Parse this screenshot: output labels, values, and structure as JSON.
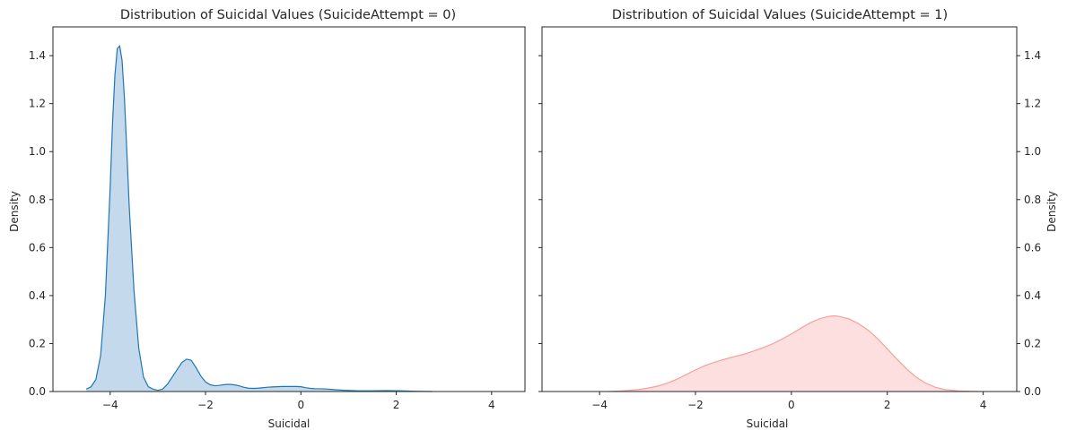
{
  "chart_data": [
    {
      "type": "area",
      "title": "Distribution of Suicidal Values (SuicideAttempt = 0)",
      "xlabel": "Suicidal",
      "ylabel": "Density",
      "xlim": [
        -5.2,
        4.7
      ],
      "ylim": [
        0,
        1.52
      ],
      "xticks": [
        -4,
        -2,
        0,
        2,
        4
      ],
      "xtick_labels": [
        "−4",
        "−2",
        "0",
        "2",
        "4"
      ],
      "yticks": [
        0,
        0.2,
        0.4,
        0.6,
        0.8,
        1.0,
        1.2,
        1.4
      ],
      "ytick_labels": [
        "0.0",
        "0.2",
        "0.4",
        "0.6",
        "0.8",
        "1.0",
        "1.2",
        "1.4"
      ],
      "ylabel_side": "left",
      "show_yticklabels": true,
      "grid": false,
      "line_color": "#1f77b4",
      "fill_color": "#c4d9eb",
      "series": [
        {
          "x": [
            -4.5,
            -4.4,
            -4.3,
            -4.2,
            -4.1,
            -4.0,
            -3.95,
            -3.9,
            -3.85,
            -3.8,
            -3.75,
            -3.7,
            -3.65,
            -3.6,
            -3.5,
            -3.4,
            -3.3,
            -3.2,
            -3.1,
            -3.0,
            -2.9,
            -2.8,
            -2.7,
            -2.6,
            -2.5,
            -2.4,
            -2.3,
            -2.2,
            -2.1,
            -2.0,
            -1.9,
            -1.8,
            -1.7,
            -1.6,
            -1.5,
            -1.4,
            -1.3,
            -1.2,
            -1.1,
            -1.0,
            -0.9,
            -0.8,
            -0.7,
            -0.6,
            -0.5,
            -0.4,
            -0.3,
            -0.2,
            -0.1,
            0.0,
            0.1,
            0.2,
            0.3,
            0.5,
            0.7,
            0.9,
            1.2,
            1.5,
            1.8,
            2.1,
            2.4,
            2.75
          ],
          "y": [
            0.01,
            0.02,
            0.05,
            0.15,
            0.4,
            0.85,
            1.12,
            1.32,
            1.43,
            1.44,
            1.38,
            1.22,
            1.0,
            0.77,
            0.42,
            0.18,
            0.06,
            0.02,
            0.01,
            0.005,
            0.01,
            0.03,
            0.06,
            0.09,
            0.12,
            0.135,
            0.13,
            0.1,
            0.065,
            0.04,
            0.028,
            0.024,
            0.026,
            0.029,
            0.03,
            0.028,
            0.024,
            0.018,
            0.014,
            0.013,
            0.014,
            0.016,
            0.018,
            0.019,
            0.02,
            0.021,
            0.021,
            0.021,
            0.021,
            0.02,
            0.016,
            0.013,
            0.012,
            0.011,
            0.008,
            0.005,
            0.003,
            0.003,
            0.004,
            0.003,
            0.001,
            0.0
          ]
        }
      ]
    },
    {
      "type": "area",
      "title": "Distribution of Suicidal Values (SuicideAttempt = 1)",
      "xlabel": "Suicidal",
      "ylabel": "Density",
      "xlim": [
        -5.2,
        4.7
      ],
      "ylim": [
        0,
        1.52
      ],
      "xticks": [
        -4,
        -2,
        0,
        2,
        4
      ],
      "xtick_labels": [
        "−4",
        "−2",
        "0",
        "2",
        "4"
      ],
      "yticks": [
        0,
        0.2,
        0.4,
        0.6,
        0.8,
        1.0,
        1.2,
        1.4
      ],
      "ytick_labels": [
        "0.0",
        "0.2",
        "0.4",
        "0.6",
        "0.8",
        "1.0",
        "1.2",
        "1.4"
      ],
      "ylabel_side": "right",
      "show_yticklabels": true,
      "grid": false,
      "line_color": "#f4a09c",
      "fill_color": "#fddfe0",
      "series": [
        {
          "x": [
            -3.8,
            -3.5,
            -3.2,
            -3.0,
            -2.8,
            -2.6,
            -2.4,
            -2.2,
            -2.0,
            -1.8,
            -1.6,
            -1.4,
            -1.2,
            -1.0,
            -0.8,
            -0.6,
            -0.4,
            -0.2,
            0.0,
            0.2,
            0.4,
            0.6,
            0.8,
            0.9,
            1.0,
            1.2,
            1.4,
            1.6,
            1.8,
            2.0,
            2.2,
            2.4,
            2.6,
            2.8,
            3.0,
            3.2,
            3.5,
            3.9
          ],
          "y": [
            0.0,
            0.003,
            0.008,
            0.014,
            0.022,
            0.034,
            0.05,
            0.07,
            0.09,
            0.108,
            0.122,
            0.134,
            0.145,
            0.155,
            0.168,
            0.182,
            0.198,
            0.218,
            0.24,
            0.264,
            0.287,
            0.304,
            0.314,
            0.315,
            0.313,
            0.303,
            0.283,
            0.256,
            0.22,
            0.178,
            0.135,
            0.095,
            0.06,
            0.035,
            0.018,
            0.008,
            0.002,
            0.0
          ]
        }
      ]
    }
  ]
}
